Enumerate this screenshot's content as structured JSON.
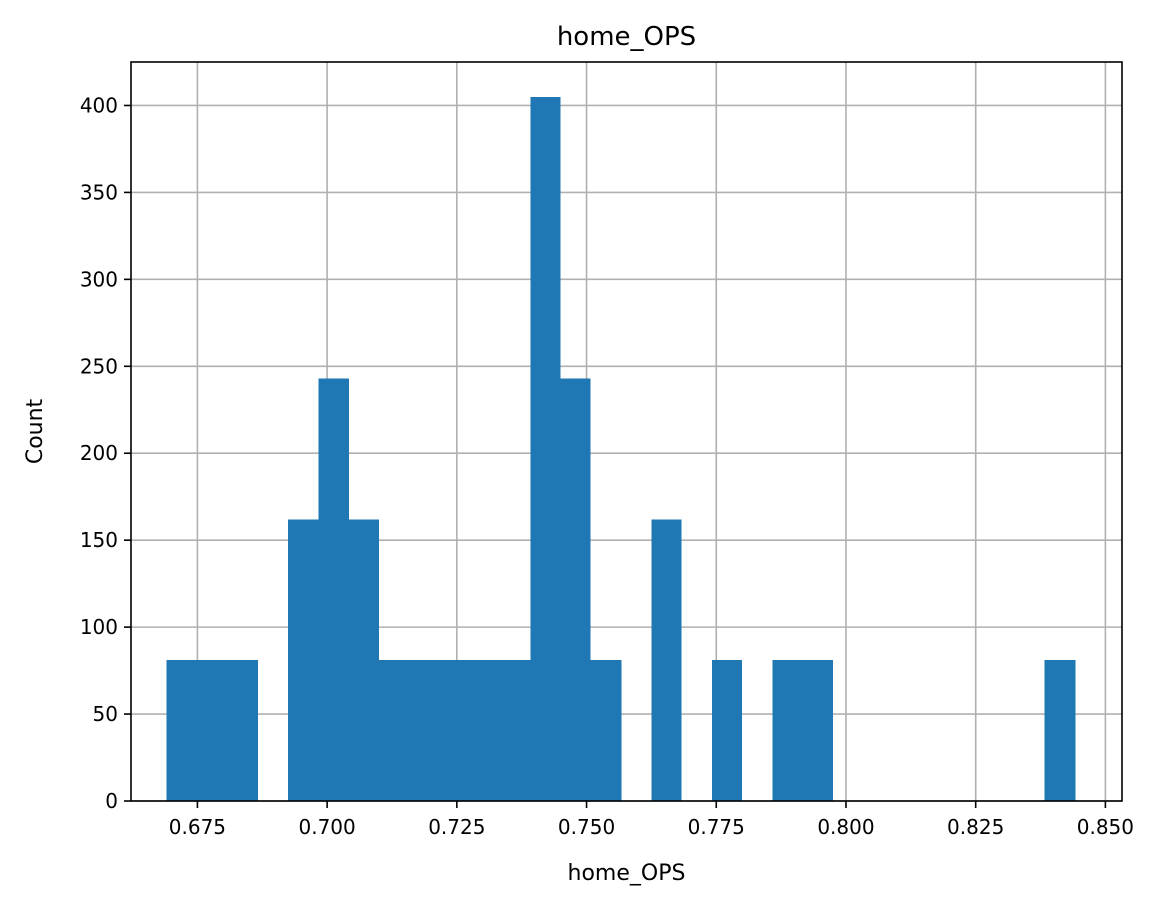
{
  "chart_data": {
    "type": "bar",
    "title": "home_OPS",
    "xlabel": "home_OPS",
    "ylabel": "Count",
    "xlim": [
      0.6622,
      0.8532
    ],
    "ylim": [
      0,
      425
    ],
    "grid": true,
    "bar_color": "#1f77b4",
    "bin_edges": [
      0.669,
      0.675,
      0.6808,
      0.6867,
      0.6925,
      0.6983,
      0.7042,
      0.71,
      0.7158,
      0.7217,
      0.7275,
      0.7333,
      0.7392,
      0.745,
      0.7508,
      0.7567,
      0.7625,
      0.7683,
      0.7742,
      0.78,
      0.7858,
      0.7917,
      0.7975,
      0.8033,
      0.8092,
      0.815,
      0.8208,
      0.8267,
      0.8325,
      0.8383,
      0.8442
    ],
    "counts": [
      81,
      81,
      81,
      0,
      162,
      243,
      162,
      81,
      81,
      81,
      81,
      81,
      405,
      243,
      81,
      0,
      162,
      0,
      81,
      0,
      81,
      81,
      0,
      0,
      0,
      0,
      0,
      0,
      0,
      81
    ],
    "x_ticks": [
      "0.675",
      "0.700",
      "0.725",
      "0.750",
      "0.775",
      "0.800",
      "0.825",
      "0.850"
    ],
    "x_tick_values": [
      0.675,
      0.7,
      0.725,
      0.75,
      0.775,
      0.8,
      0.825,
      0.85
    ],
    "y_ticks": [
      "0",
      "50",
      "100",
      "150",
      "200",
      "250",
      "300",
      "350",
      "400"
    ],
    "y_tick_values": [
      0,
      50,
      100,
      150,
      200,
      250,
      300,
      350,
      400
    ]
  }
}
